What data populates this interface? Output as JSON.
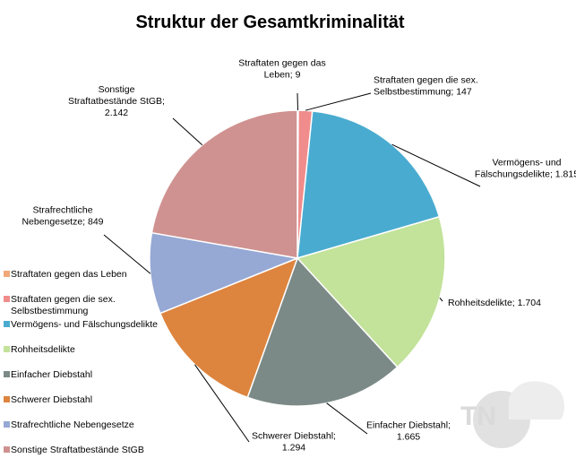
{
  "title": "Struktur der Gesamtkriminalität",
  "colors": {
    "gegen_leben": "#f0a878",
    "sex": "#f08c8c",
    "vermoegen": "#4aabd0",
    "rohheit": "#c3e29a",
    "einfacher": "#7c8a87",
    "schwerer": "#dd843e",
    "nebengesetze": "#96a8d4",
    "sonstige": "#cf9290"
  },
  "watermark": "TN",
  "chart_data": {
    "type": "pie",
    "title": "Struktur der Gesamtkriminalität",
    "slices": [
      {
        "key": "gegen_leben",
        "label": "Straftaten gegen das Leben",
        "value": 9,
        "value_text": "9",
        "data_label": [
          "Straftaten gegen das",
          "Leben; 9"
        ]
      },
      {
        "key": "sex",
        "label": "Straftaten gegen die sex. Selbstbestimmung",
        "value": 147,
        "value_text": "147",
        "data_label": [
          "Straftaten gegen die sex.",
          "Selbstbestimmung; 147"
        ]
      },
      {
        "key": "vermoegen",
        "label": "Vermögens- und Fälschungsdelikte",
        "value": 1815,
        "value_text": "1.815",
        "data_label": [
          "Vermögens- und",
          "Fälschungsdelikte; 1.815"
        ]
      },
      {
        "key": "rohheit",
        "label": "Rohheitsdelikte",
        "value": 1704,
        "value_text": "1.704",
        "data_label": [
          "Rohheitsdelikte; 1.704"
        ]
      },
      {
        "key": "einfacher",
        "label": "Einfacher Diebstahl",
        "value": 1665,
        "value_text": "1.665",
        "data_label": [
          "Einfacher Diebstahl;",
          "1.665"
        ]
      },
      {
        "key": "schwerer",
        "label": "Schwerer Diebstahl",
        "value": 1294,
        "value_text": "1.294",
        "data_label": [
          "Schwerer Diebstahl;",
          "1.294"
        ]
      },
      {
        "key": "nebengesetze",
        "label": "Strafrechtliche Nebengesetze",
        "value": 849,
        "value_text": "849",
        "data_label": [
          "Strafrechtliche",
          "Nebengesetze; 849"
        ]
      },
      {
        "key": "sonstige",
        "label": "Sonstige Straftatbestände StGB",
        "value": 2142,
        "value_text": "2.142",
        "data_label": [
          "Sonstige",
          "Straftatbestände StGB;",
          "2.142"
        ]
      }
    ],
    "legend": {
      "position": "left",
      "entries": [
        [
          "Straftaten gegen das Leben"
        ],
        [
          "Straftaten gegen die sex.",
          "Selbstbestimmung"
        ],
        [
          "Vermögens- und Fälschungsdelikte"
        ],
        [
          "Rohheitsdelikte"
        ],
        [
          "Einfacher Diebstahl"
        ],
        [
          "Schwerer Diebstahl"
        ],
        [
          "Strafrechtliche Nebengesetze"
        ],
        [
          "Sonstige Straftatbestände StGB"
        ]
      ]
    }
  }
}
